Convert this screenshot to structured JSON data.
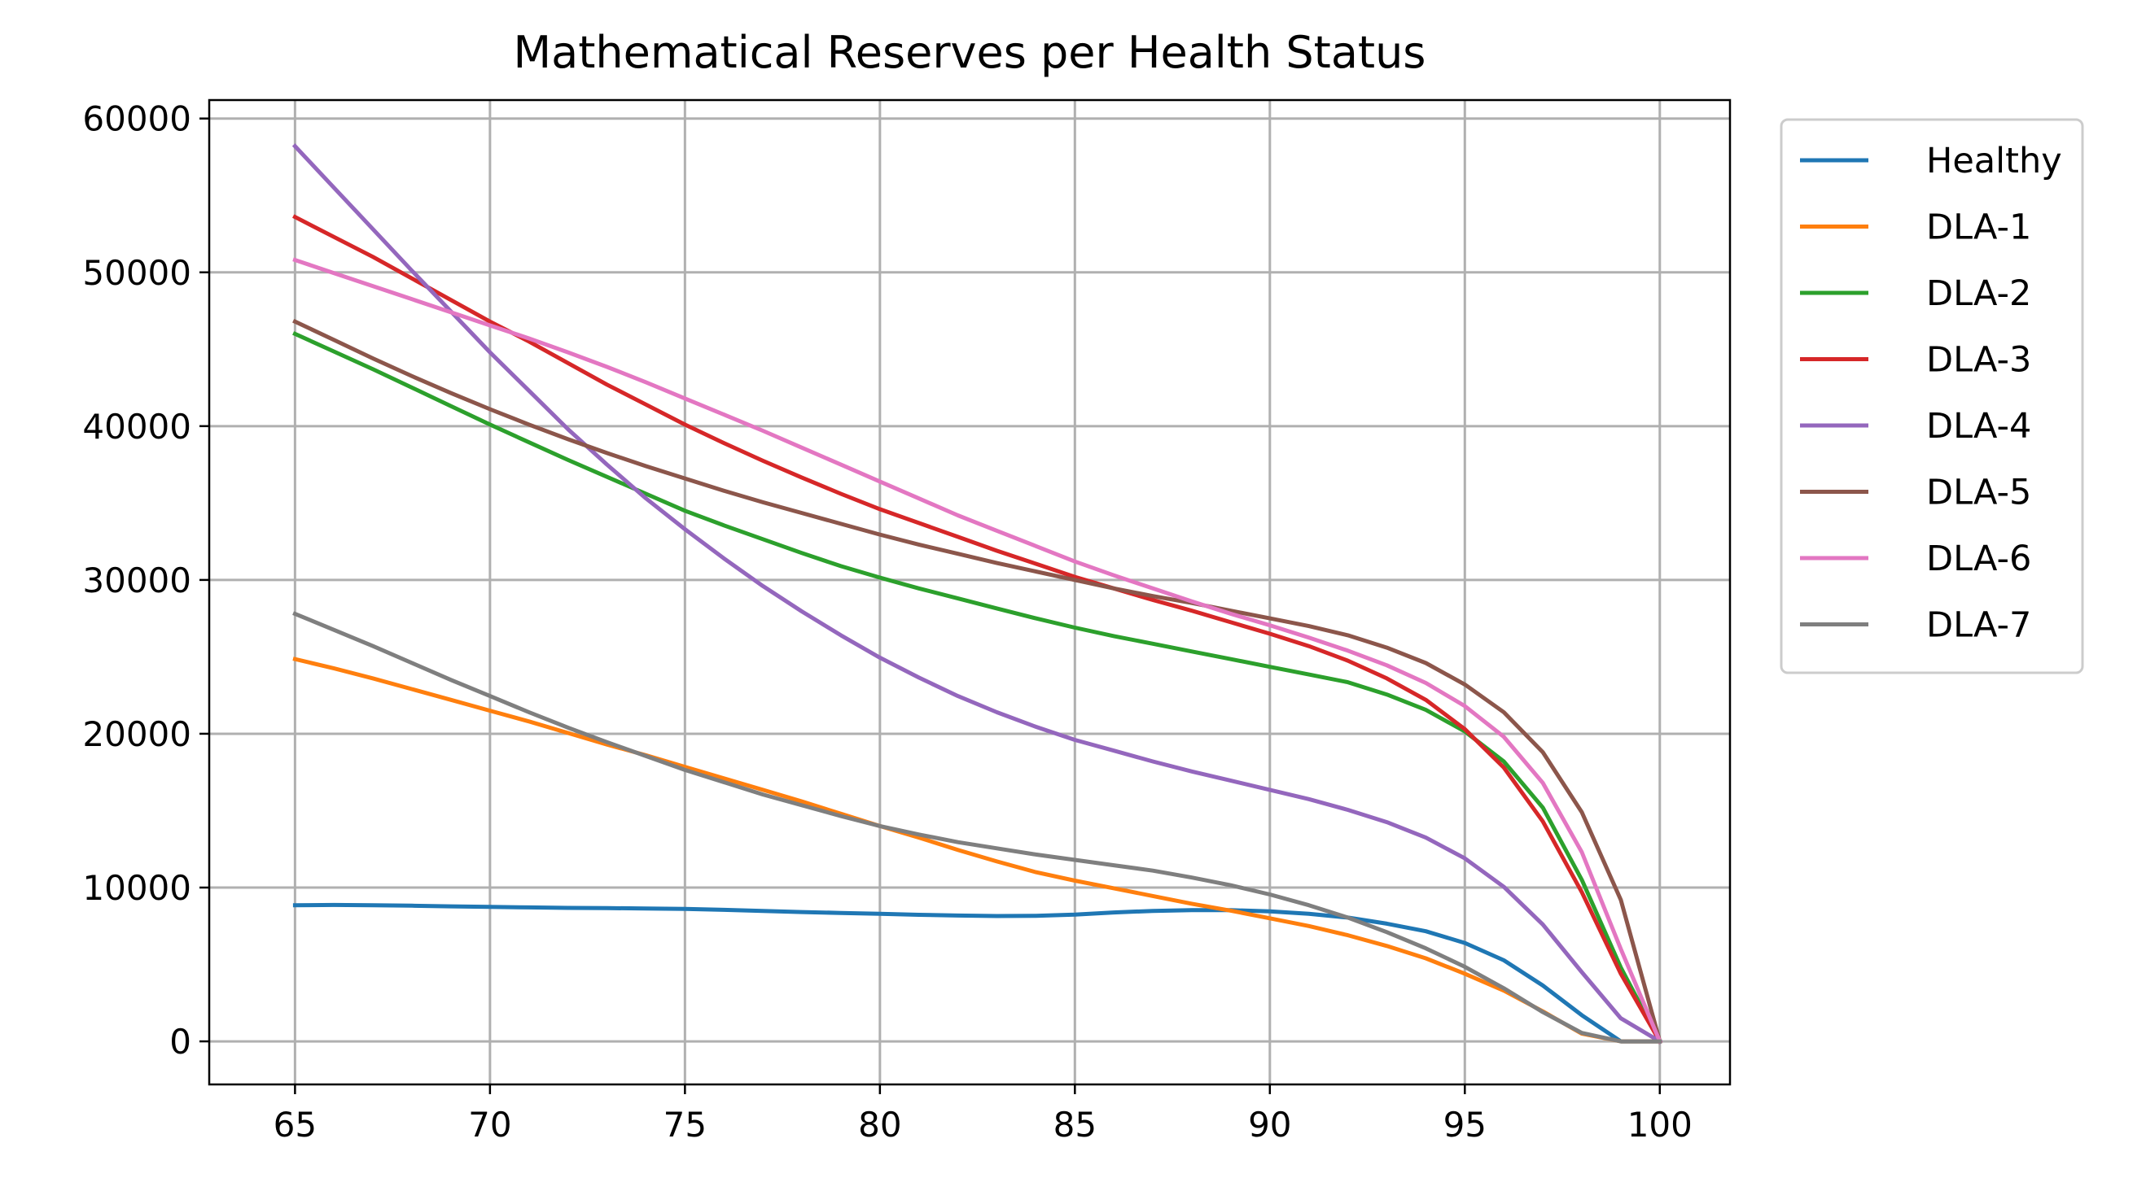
{
  "chart_data": {
    "type": "line",
    "title": "Mathematical Reserves per Health Status",
    "xlabel": "",
    "ylabel": "",
    "xlim": [
      62.8,
      101.8
    ],
    "ylim": [
      -2800,
      61200
    ],
    "grid": true,
    "legend_position": "outside-right-top",
    "x_ticks": [
      65,
      70,
      75,
      80,
      85,
      90,
      95,
      100
    ],
    "x_tick_labels": [
      "65",
      "70",
      "75",
      "80",
      "85",
      "90",
      "95",
      "100"
    ],
    "y_ticks": [
      0,
      10000,
      20000,
      30000,
      40000,
      50000,
      60000
    ],
    "y_tick_labels": [
      "0",
      "10000",
      "20000",
      "30000",
      "40000",
      "50000",
      "60000"
    ],
    "x": [
      65,
      66,
      67,
      68,
      69,
      70,
      71,
      72,
      73,
      74,
      75,
      76,
      77,
      78,
      79,
      80,
      81,
      82,
      83,
      84,
      85,
      86,
      87,
      88,
      89,
      90,
      91,
      92,
      93,
      94,
      95,
      96,
      97,
      98,
      99,
      100
    ],
    "series": [
      {
        "name": "Healthy",
        "color": "#1f77b4",
        "values": [
          8850,
          8870,
          8850,
          8820,
          8780,
          8740,
          8710,
          8680,
          8660,
          8640,
          8610,
          8550,
          8480,
          8410,
          8350,
          8290,
          8230,
          8180,
          8150,
          8160,
          8240,
          8380,
          8480,
          8530,
          8530,
          8450,
          8290,
          8050,
          7650,
          7160,
          6400,
          5270,
          3630,
          1700,
          0,
          0
        ]
      },
      {
        "name": "DLA-1",
        "color": "#ff7f0e",
        "values": [
          24850,
          24250,
          23600,
          22900,
          22200,
          21500,
          20800,
          20050,
          19300,
          18600,
          17850,
          17100,
          16350,
          15600,
          14800,
          14000,
          13250,
          12450,
          11700,
          11000,
          10450,
          9950,
          9450,
          8950,
          8500,
          8000,
          7500,
          6900,
          6200,
          5400,
          4400,
          3300,
          1950,
          500,
          0,
          0
        ]
      },
      {
        "name": "DLA-2",
        "color": "#2ca02c",
        "values": [
          46000,
          44850,
          43700,
          42500,
          41300,
          40100,
          38950,
          37800,
          36700,
          35600,
          34500,
          33550,
          32650,
          31750,
          30900,
          30150,
          29450,
          28800,
          28150,
          27500,
          26900,
          26350,
          25850,
          25350,
          24850,
          24350,
          23850,
          23350,
          22550,
          21550,
          20150,
          18200,
          15200,
          10500,
          4800,
          0
        ]
      },
      {
        "name": "DLA-3",
        "color": "#d62728",
        "values": [
          53600,
          52300,
          51000,
          49600,
          48200,
          46800,
          45500,
          44100,
          42700,
          41400,
          40100,
          38900,
          37750,
          36650,
          35600,
          34600,
          33700,
          32800,
          31900,
          31050,
          30200,
          29450,
          28700,
          28000,
          27250,
          26500,
          25700,
          24750,
          23600,
          22200,
          20300,
          17800,
          14300,
          9700,
          4400,
          0
        ]
      },
      {
        "name": "DLA-4",
        "color": "#9467bd",
        "values": [
          58200,
          55500,
          52800,
          50100,
          47450,
          44800,
          42300,
          39800,
          37500,
          35300,
          33300,
          31400,
          29600,
          27950,
          26400,
          24950,
          23650,
          22450,
          21400,
          20450,
          19600,
          18900,
          18200,
          17550,
          16950,
          16350,
          15750,
          15050,
          14250,
          13250,
          11900,
          10050,
          7600,
          4500,
          1500,
          0
        ]
      },
      {
        "name": "DLA-5",
        "color": "#8c564b",
        "values": [
          46800,
          45600,
          44400,
          43250,
          42150,
          41100,
          40100,
          39150,
          38250,
          37400,
          36600,
          35800,
          35050,
          34350,
          33650,
          32950,
          32300,
          31700,
          31100,
          30550,
          30000,
          29450,
          28950,
          28500,
          28000,
          27500,
          27000,
          26400,
          25600,
          24600,
          23200,
          21400,
          18800,
          14900,
          9200,
          0
        ]
      },
      {
        "name": "DLA-6",
        "color": "#e377c2",
        "values": [
          50800,
          49950,
          49100,
          48250,
          47400,
          46550,
          45700,
          44800,
          43850,
          42850,
          41800,
          40750,
          39700,
          38600,
          37500,
          36400,
          35300,
          34200,
          33200,
          32200,
          31200,
          30300,
          29450,
          28600,
          27800,
          27050,
          26250,
          25400,
          24450,
          23300,
          21800,
          19800,
          16800,
          12300,
          6000,
          0
        ]
      },
      {
        "name": "DLA-7",
        "color": "#7f7f7f",
        "values": [
          27800,
          26750,
          25700,
          24600,
          23500,
          22450,
          21400,
          20400,
          19450,
          18550,
          17650,
          16850,
          16050,
          15350,
          14650,
          14000,
          13450,
          12950,
          12550,
          12150,
          11800,
          11450,
          11100,
          10650,
          10150,
          9550,
          8850,
          8050,
          7100,
          6050,
          4850,
          3450,
          1900,
          550,
          0,
          0
        ]
      }
    ]
  }
}
